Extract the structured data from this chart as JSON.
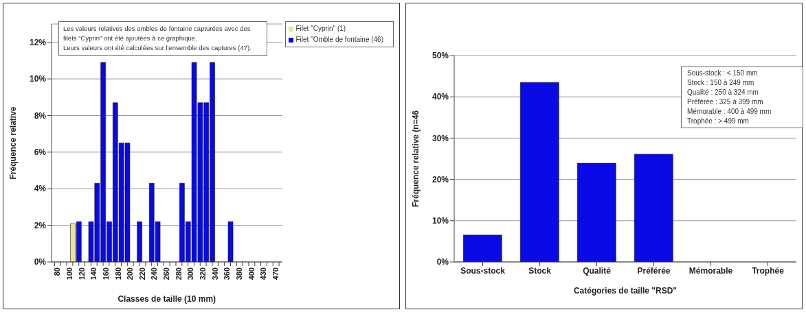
{
  "chart_data": [
    {
      "type": "bar",
      "xlabel": "Classes de taille (10 mm)",
      "ylabel": "Fréquence relative",
      "categories": [
        "80",
        null,
        "100",
        null,
        "120",
        null,
        "140",
        null,
        "160",
        null,
        "180",
        null,
        "200",
        null,
        "220",
        null,
        "240",
        null,
        "260",
        null,
        "280",
        null,
        "300",
        null,
        "320",
        null,
        "340",
        null,
        "360",
        null,
        "380",
        null,
        "400",
        null,
        "430",
        null,
        "470",
        null
      ],
      "series": [
        {
          "name": "Filet \"Cyprin\" (1)",
          "color": "#e8e49a",
          "values": [
            0,
            0,
            0,
            2.1,
            0,
            0,
            0,
            0,
            0,
            0,
            0,
            0,
            0,
            0,
            0,
            0,
            0,
            0,
            0,
            0,
            0,
            0,
            0,
            0,
            0,
            0,
            0,
            0,
            0,
            0,
            0,
            0,
            0,
            0,
            0,
            0,
            0,
            0
          ]
        },
        {
          "name": "Filet \"Omble de fontaine (46)",
          "color": "#0a0ae6",
          "values": [
            0,
            0,
            0,
            0,
            2.2,
            0,
            2.2,
            4.3,
            10.9,
            2.2,
            8.7,
            6.5,
            6.5,
            0,
            2.2,
            0,
            4.3,
            2.2,
            0,
            0,
            0,
            4.3,
            2.2,
            10.9,
            8.7,
            8.7,
            10.9,
            0,
            0,
            2.2,
            0,
            0,
            0,
            0,
            0,
            0,
            0,
            0
          ]
        }
      ],
      "stacked": true,
      "ylim": [
        0,
        13
      ],
      "yticks": [
        {
          "value": 0,
          "label": "0%"
        },
        {
          "value": 2,
          "label": "2%"
        },
        {
          "value": 4,
          "label": "4%"
        },
        {
          "value": 6,
          "label": "6%"
        },
        {
          "value": 8,
          "label": "8%"
        },
        {
          "value": 10,
          "label": "10%"
        },
        {
          "value": 12,
          "label": "12%"
        }
      ],
      "grid": "y",
      "legend": "top right",
      "annotations": [
        "Les valeurs relatives des ombles de fontaine capturées avec des filets \"Cyprin\" ont été ajoutées à ce graphique.",
        "Leurs valeurs ont été calculées sur l'ensemble des captures (47)."
      ]
    },
    {
      "type": "bar",
      "xlabel": "Catégories de taille \"RSD\"",
      "ylabel": "Fréquence relative (n=46",
      "categories": [
        "Sous-stock",
        "Stock",
        "Qualité",
        "Préférée",
        "Mémorable",
        "Trophée"
      ],
      "values": [
        6.5,
        43.5,
        23.9,
        26.1,
        0,
        0
      ],
      "color": "#0a0ae6",
      "ylim": [
        0,
        50
      ],
      "yticks": [
        {
          "value": 0,
          "label": "0%"
        },
        {
          "value": 10,
          "label": "10%"
        },
        {
          "value": 20,
          "label": "20%"
        },
        {
          "value": 30,
          "label": "30%"
        },
        {
          "value": 40,
          "label": "40%"
        },
        {
          "value": 50,
          "label": "50%"
        }
      ],
      "grid": "y",
      "annotations": [
        "Sous-stock : < 150 mm",
        "Stock : 150 à 249 mm",
        "Qualité : 250 à 324 mm",
        "Préférée : 325 à 399 mm",
        "Mémorable : 400 à 499 mm",
        "Trophée : > 499 mm"
      ]
    }
  ]
}
